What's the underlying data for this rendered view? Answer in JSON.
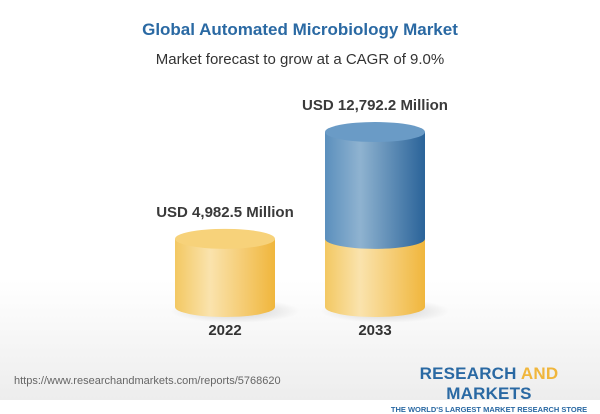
{
  "header": {
    "title": "Global Automated Microbiology Market",
    "subtitle": "Market forecast to grow at a CAGR of 9.0%"
  },
  "chart_data": {
    "type": "bar",
    "style": "3d-cylinder",
    "categories": [
      "2022",
      "2033"
    ],
    "values": [
      4982.5,
      12792.2
    ],
    "data_labels": [
      "USD 4,982.5 Million",
      "USD 12,792.2 Million"
    ],
    "unit": "USD Million",
    "colors": {
      "base": "#f2c45a",
      "growth": "#3b78ac"
    }
  },
  "footer": {
    "url": "https://www.researchandmarkets.com/reports/5768620",
    "logo_part1": "RESEARCH ",
    "logo_part2": "AND",
    "logo_part3": " MARKETS",
    "tagline": "THE WORLD'S LARGEST MARKET RESEARCH STORE"
  }
}
